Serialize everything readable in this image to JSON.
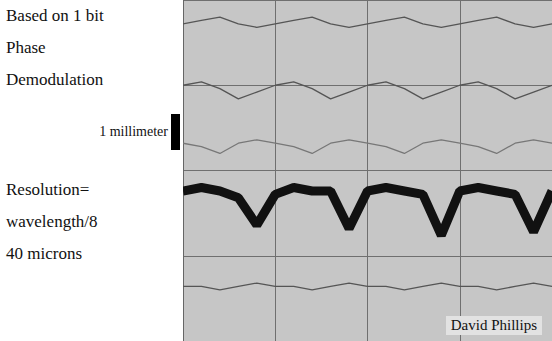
{
  "chart_data": {
    "type": "line",
    "annotations": {
      "left": [
        "Based on 1 bit",
        "Phase",
        "Demodulation",
        "Resolution=",
        "wavelength/8",
        "40 microns"
      ],
      "scale_bar": "1 millimeter",
      "credit": "David Phillips"
    },
    "x": [
      0,
      5,
      10,
      15,
      20,
      25,
      30,
      35,
      40,
      45,
      50,
      55,
      60,
      65,
      70,
      75,
      80,
      85,
      90,
      95,
      100
    ],
    "series": [
      {
        "color": "#555555",
        "line_style": "solid",
        "values": [
          93,
          94,
          95,
          93,
          92,
          93,
          94,
          95,
          93,
          92,
          93,
          94,
          95,
          93,
          92,
          93,
          94,
          95,
          93,
          92,
          93
        ]
      },
      {
        "color": "#555555",
        "line_style": "solid",
        "values": [
          75,
          76,
          74,
          71,
          73,
          75,
          76,
          74,
          71,
          73,
          75,
          76,
          74,
          71,
          73,
          75,
          76,
          74,
          71,
          73,
          75
        ]
      },
      {
        "color": "#777777",
        "line_style": "solid",
        "values": [
          58,
          57,
          55,
          58,
          59,
          58,
          57,
          55,
          58,
          59,
          58,
          57,
          55,
          58,
          59,
          58,
          57,
          55,
          58,
          59,
          58
        ]
      },
      {
        "color": "#111111",
        "line_style": "bold",
        "values": [
          44,
          45,
          44,
          42,
          34,
          43,
          45,
          44,
          44,
          33,
          44,
          45,
          44,
          43,
          31,
          44,
          45,
          44,
          43,
          32,
          44
        ]
      },
      {
        "color": "#555555",
        "line_style": "solid",
        "values": [
          16,
          16,
          15,
          16,
          17,
          16,
          16,
          15,
          16,
          17,
          16,
          16,
          15,
          16,
          17,
          16,
          16,
          15,
          16,
          17,
          16
        ]
      }
    ],
    "xlim": [
      0,
      100
    ],
    "xticks": [
      0,
      25,
      50,
      75,
      100
    ],
    "ylim": [
      0,
      100
    ],
    "yticks": [
      0,
      25,
      50,
      75,
      100
    ],
    "grid": true,
    "tick_labels": false
  }
}
